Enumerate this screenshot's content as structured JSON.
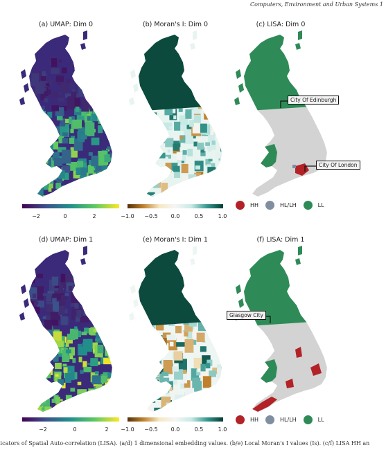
{
  "header": {
    "journal": "Computers, Environment and Urban Systems 1"
  },
  "caption": "licators of Spatial Auto-correlation (LISA). (a/d) 1 dimensional embedding values. (b/e) Local Moran's I values (Is). (c/f) LISA HH an",
  "panels": {
    "a": {
      "title": "(a) UMAP: Dim 0",
      "ticks": [
        "−2",
        "0",
        "2"
      ]
    },
    "b": {
      "title": "(b) Moran's I: Dim 0",
      "ticks": [
        "−1.0",
        "−0.5",
        "0.0",
        "0.5",
        "1.0"
      ]
    },
    "c": {
      "title": "(c) LISA: Dim 0",
      "callout1": "City Of Edinburgh",
      "callout2": "City Of London"
    },
    "d": {
      "title": "(d) UMAP: Dim 1",
      "ticks": [
        "−2",
        "0",
        "2"
      ]
    },
    "e": {
      "title": "(e) Moran's I: Dim 1",
      "ticks": [
        "−1.0",
        "−0.5",
        "0.0",
        "0.5",
        "1.0"
      ]
    },
    "f": {
      "title": "(f) LISA: Dim 1",
      "callout1": "Glasgow City"
    }
  },
  "legend": {
    "hh": "HH",
    "hllh": "HL/LH",
    "ll": "LL",
    "colors": {
      "hh": "#b22226",
      "hllh": "#7f8fa0",
      "ll": "#2e8b57"
    }
  },
  "colormaps": {
    "viridis": [
      "#440154",
      "#3b528b",
      "#21918c",
      "#5ec962",
      "#fde725"
    ],
    "brbg": [
      "#543005",
      "#bf812d",
      "#f6e8c3",
      "#f5f5f5",
      "#c7eae5",
      "#35978f",
      "#003c30"
    ]
  }
}
